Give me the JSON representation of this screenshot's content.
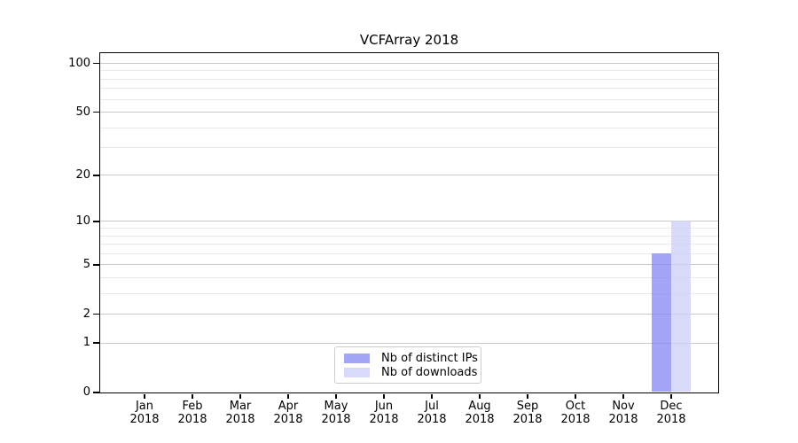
{
  "chart_data": {
    "type": "bar",
    "title": "VCFArray 2018",
    "categories": [
      "Jan\n2018",
      "Feb\n2018",
      "Mar\n2018",
      "Apr\n2018",
      "May\n2018",
      "Jun\n2018",
      "Jul\n2018",
      "Aug\n2018",
      "Sep\n2018",
      "Oct\n2018",
      "Nov\n2018",
      "Dec\n2018"
    ],
    "series": [
      {
        "name": "Nb of distinct IPs",
        "color": "rgba(130,130,242,0.72)",
        "values": [
          0,
          0,
          0,
          0,
          0,
          0,
          0,
          0,
          0,
          0,
          0,
          6
        ]
      },
      {
        "name": "Nb of downloads",
        "color": "rgba(206,206,248,0.78)",
        "values": [
          0,
          0,
          0,
          0,
          0,
          0,
          0,
          0,
          0,
          0,
          0,
          10
        ]
      }
    ],
    "xlabel": "",
    "ylabel": "",
    "y_scale": "log1p",
    "y_major_ticks": [
      0,
      1,
      2,
      5,
      10,
      20,
      50,
      100
    ],
    "y_minor_ticks": [
      3,
      4,
      6,
      7,
      8,
      9,
      30,
      40,
      60,
      70,
      80,
      90
    ],
    "ylim": [
      0,
      115
    ],
    "grid": "horizontal",
    "legend_position": "lower center"
  },
  "colors": {
    "grid_major": "#c9c9c9",
    "grid_minor": "#eaeaea",
    "axis": "#000000",
    "text": "#000000",
    "legend_border": "#cccccc",
    "background": "#ffffff"
  }
}
